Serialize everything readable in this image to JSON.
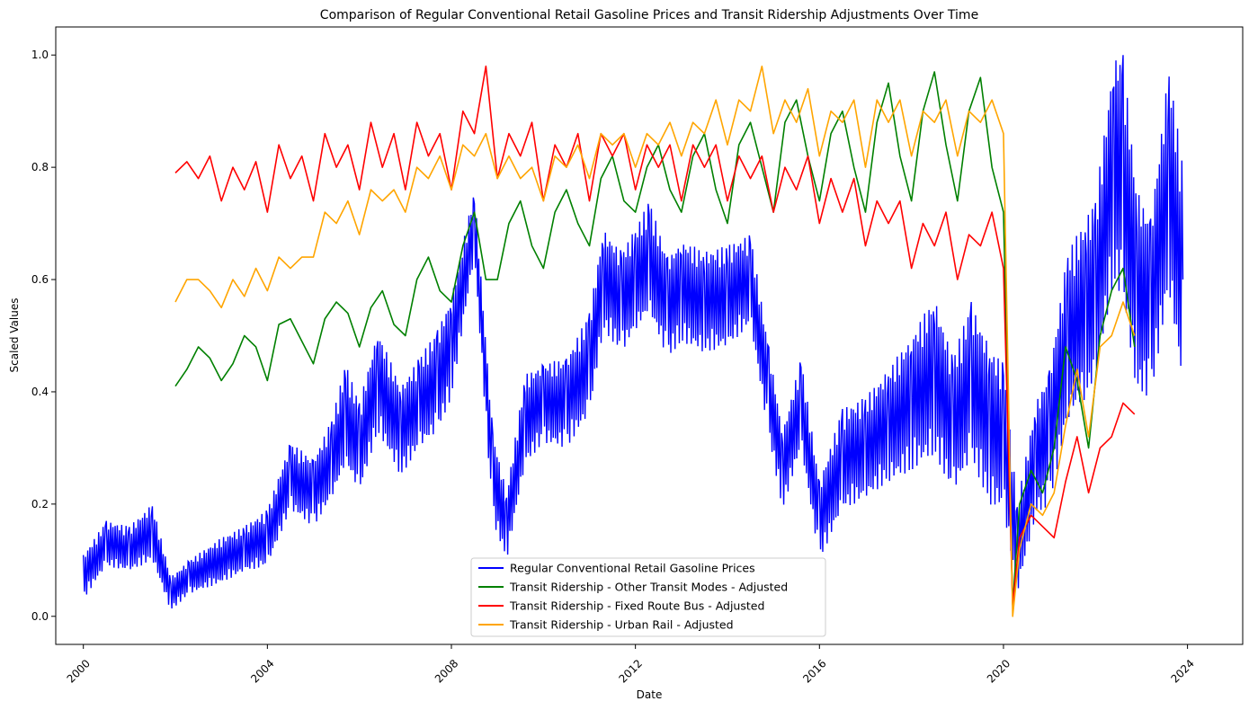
{
  "chart_data": {
    "type": "line",
    "title": "Comparison of Regular Conventional Retail Gasoline Prices and Transit Ridership Adjustments Over Time",
    "xlabel": "Date",
    "ylabel": "Scaled Values",
    "xlim": [
      1999.4,
      2025.2
    ],
    "ylim": [
      -0.05,
      1.05
    ],
    "x_ticks": [
      2000,
      2004,
      2008,
      2012,
      2016,
      2020,
      2024
    ],
    "x_tick_labels": [
      "2000",
      "2004",
      "2008",
      "2012",
      "2016",
      "2020",
      "2024"
    ],
    "y_ticks": [
      0.0,
      0.2,
      0.4,
      0.6,
      0.8,
      1.0
    ],
    "y_tick_labels": [
      "0.0",
      "0.2",
      "0.4",
      "0.6",
      "0.8",
      "1.0"
    ],
    "grid": false,
    "legend_position": "bottom-center",
    "series": [
      {
        "name": "Regular Conventional Retail Gasoline Prices",
        "color": "#0000ff",
        "band": true,
        "x": [
          2000.0,
          2000.5,
          2001.0,
          2001.5,
          2001.9,
          2002.3,
          2003.0,
          2003.5,
          2004.0,
          2004.5,
          2005.0,
          2005.4,
          2005.7,
          2006.0,
          2006.4,
          2006.9,
          2007.3,
          2007.7,
          2008.0,
          2008.5,
          2008.9,
          2009.2,
          2009.6,
          2010.0,
          2010.5,
          2011.0,
          2011.3,
          2011.7,
          2012.0,
          2012.3,
          2012.7,
          2013.0,
          2013.5,
          2014.0,
          2014.5,
          2014.9,
          2015.2,
          2015.6,
          2016.0,
          2016.5,
          2017.0,
          2017.5,
          2018.0,
          2018.5,
          2018.9,
          2019.3,
          2019.7,
          2020.0,
          2020.3,
          2020.7,
          2021.0,
          2021.4,
          2021.8,
          2022.0,
          2022.4,
          2022.6,
          2022.9,
          2023.2,
          2023.6,
          2023.9
        ],
        "values": [
          0.07,
          0.13,
          0.12,
          0.15,
          0.04,
          0.07,
          0.1,
          0.12,
          0.14,
          0.25,
          0.22,
          0.28,
          0.36,
          0.3,
          0.42,
          0.33,
          0.38,
          0.42,
          0.48,
          0.7,
          0.25,
          0.16,
          0.35,
          0.38,
          0.38,
          0.45,
          0.6,
          0.56,
          0.6,
          0.64,
          0.55,
          0.58,
          0.56,
          0.57,
          0.6,
          0.4,
          0.26,
          0.38,
          0.17,
          0.28,
          0.3,
          0.34,
          0.38,
          0.43,
          0.34,
          0.42,
          0.34,
          0.32,
          0.12,
          0.28,
          0.32,
          0.5,
          0.55,
          0.58,
          0.8,
          0.78,
          0.58,
          0.55,
          0.78,
          0.6
        ],
        "spread": [
          0.04,
          0.04,
          0.04,
          0.05,
          0.03,
          0.03,
          0.04,
          0.04,
          0.05,
          0.06,
          0.06,
          0.07,
          0.09,
          0.08,
          0.09,
          0.08,
          0.08,
          0.09,
          0.09,
          0.06,
          0.08,
          0.06,
          0.08,
          0.07,
          0.08,
          0.09,
          0.09,
          0.09,
          0.09,
          0.1,
          0.09,
          0.09,
          0.09,
          0.09,
          0.08,
          0.08,
          0.07,
          0.08,
          0.07,
          0.09,
          0.09,
          0.1,
          0.12,
          0.14,
          0.12,
          0.14,
          0.14,
          0.13,
          0.08,
          0.1,
          0.12,
          0.15,
          0.16,
          0.16,
          0.2,
          0.22,
          0.18,
          0.16,
          0.2,
          0.2
        ]
      },
      {
        "name": "Transit Ridership - Other Transit Modes - Adjusted",
        "color": "#008000",
        "x": [
          2002.0,
          2002.25,
          2002.5,
          2002.75,
          2003.0,
          2003.25,
          2003.5,
          2003.75,
          2004.0,
          2004.25,
          2004.5,
          2004.75,
          2005.0,
          2005.25,
          2005.5,
          2005.75,
          2006.0,
          2006.25,
          2006.5,
          2006.75,
          2007.0,
          2007.25,
          2007.5,
          2007.75,
          2008.0,
          2008.25,
          2008.5,
          2008.75,
          2009.0,
          2009.25,
          2009.5,
          2009.75,
          2010.0,
          2010.25,
          2010.5,
          2010.75,
          2011.0,
          2011.25,
          2011.5,
          2011.75,
          2012.0,
          2012.25,
          2012.5,
          2012.75,
          2013.0,
          2013.25,
          2013.5,
          2013.75,
          2014.0,
          2014.25,
          2014.5,
          2014.75,
          2015.0,
          2015.25,
          2015.5,
          2015.75,
          2016.0,
          2016.25,
          2016.5,
          2016.75,
          2017.0,
          2017.25,
          2017.5,
          2017.75,
          2018.0,
          2018.25,
          2018.5,
          2018.75,
          2019.0,
          2019.25,
          2019.5,
          2019.75,
          2020.0,
          2020.2,
          2020.35,
          2020.6,
          2020.85,
          2021.1,
          2021.35,
          2021.6,
          2021.85,
          2022.1,
          2022.35,
          2022.6,
          2022.85
        ],
        "values": [
          0.41,
          0.44,
          0.48,
          0.46,
          0.42,
          0.45,
          0.5,
          0.48,
          0.42,
          0.52,
          0.53,
          0.49,
          0.45,
          0.53,
          0.56,
          0.54,
          0.48,
          0.55,
          0.58,
          0.52,
          0.5,
          0.6,
          0.64,
          0.58,
          0.56,
          0.66,
          0.72,
          0.6,
          0.6,
          0.7,
          0.74,
          0.66,
          0.62,
          0.72,
          0.76,
          0.7,
          0.66,
          0.78,
          0.82,
          0.74,
          0.72,
          0.8,
          0.84,
          0.76,
          0.72,
          0.82,
          0.86,
          0.76,
          0.7,
          0.84,
          0.88,
          0.8,
          0.72,
          0.88,
          0.92,
          0.82,
          0.74,
          0.86,
          0.9,
          0.8,
          0.72,
          0.88,
          0.95,
          0.82,
          0.74,
          0.9,
          0.97,
          0.84,
          0.74,
          0.9,
          0.96,
          0.8,
          0.72,
          0.02,
          0.2,
          0.26,
          0.22,
          0.3,
          0.48,
          0.42,
          0.3,
          0.5,
          0.58,
          0.62,
          0.48
        ]
      },
      {
        "name": "Transit Ridership - Fixed Route Bus - Adjusted",
        "color": "#ff0000",
        "x": [
          2002.0,
          2002.25,
          2002.5,
          2002.75,
          2003.0,
          2003.25,
          2003.5,
          2003.75,
          2004.0,
          2004.25,
          2004.5,
          2004.75,
          2005.0,
          2005.25,
          2005.5,
          2005.75,
          2006.0,
          2006.25,
          2006.5,
          2006.75,
          2007.0,
          2007.25,
          2007.5,
          2007.75,
          2008.0,
          2008.25,
          2008.5,
          2008.75,
          2009.0,
          2009.25,
          2009.5,
          2009.75,
          2010.0,
          2010.25,
          2010.5,
          2010.75,
          2011.0,
          2011.25,
          2011.5,
          2011.75,
          2012.0,
          2012.25,
          2012.5,
          2012.75,
          2013.0,
          2013.25,
          2013.5,
          2013.75,
          2014.0,
          2014.25,
          2014.5,
          2014.75,
          2015.0,
          2015.25,
          2015.5,
          2015.75,
          2016.0,
          2016.25,
          2016.5,
          2016.75,
          2017.0,
          2017.25,
          2017.5,
          2017.75,
          2018.0,
          2018.25,
          2018.5,
          2018.75,
          2019.0,
          2019.25,
          2019.5,
          2019.75,
          2020.0,
          2020.2,
          2020.35,
          2020.6,
          2020.85,
          2021.1,
          2021.35,
          2021.6,
          2021.85,
          2022.1,
          2022.35,
          2022.6,
          2022.85
        ],
        "values": [
          0.79,
          0.81,
          0.78,
          0.82,
          0.74,
          0.8,
          0.76,
          0.81,
          0.72,
          0.84,
          0.78,
          0.82,
          0.74,
          0.86,
          0.8,
          0.84,
          0.76,
          0.88,
          0.8,
          0.86,
          0.76,
          0.88,
          0.82,
          0.86,
          0.76,
          0.9,
          0.86,
          0.98,
          0.78,
          0.86,
          0.82,
          0.88,
          0.74,
          0.84,
          0.8,
          0.86,
          0.74,
          0.86,
          0.82,
          0.86,
          0.76,
          0.84,
          0.8,
          0.84,
          0.74,
          0.84,
          0.8,
          0.84,
          0.74,
          0.82,
          0.78,
          0.82,
          0.72,
          0.8,
          0.76,
          0.82,
          0.7,
          0.78,
          0.72,
          0.78,
          0.66,
          0.74,
          0.7,
          0.74,
          0.62,
          0.7,
          0.66,
          0.72,
          0.6,
          0.68,
          0.66,
          0.72,
          0.62,
          0.02,
          0.14,
          0.18,
          0.16,
          0.14,
          0.24,
          0.32,
          0.22,
          0.3,
          0.32,
          0.38,
          0.36
        ]
      },
      {
        "name": "Transit Ridership - Urban Rail - Adjusted",
        "color": "#ffa500",
        "x": [
          2002.0,
          2002.25,
          2002.5,
          2002.75,
          2003.0,
          2003.25,
          2003.5,
          2003.75,
          2004.0,
          2004.25,
          2004.5,
          2004.75,
          2005.0,
          2005.25,
          2005.5,
          2005.75,
          2006.0,
          2006.25,
          2006.5,
          2006.75,
          2007.0,
          2007.25,
          2007.5,
          2007.75,
          2008.0,
          2008.25,
          2008.5,
          2008.75,
          2009.0,
          2009.25,
          2009.5,
          2009.75,
          2010.0,
          2010.25,
          2010.5,
          2010.75,
          2011.0,
          2011.25,
          2011.5,
          2011.75,
          2012.0,
          2012.25,
          2012.5,
          2012.75,
          2013.0,
          2013.25,
          2013.5,
          2013.75,
          2014.0,
          2014.25,
          2014.5,
          2014.75,
          2015.0,
          2015.25,
          2015.5,
          2015.75,
          2016.0,
          2016.25,
          2016.5,
          2016.75,
          2017.0,
          2017.25,
          2017.5,
          2017.75,
          2018.0,
          2018.25,
          2018.5,
          2018.75,
          2019.0,
          2019.25,
          2019.5,
          2019.75,
          2020.0,
          2020.2,
          2020.35,
          2020.6,
          2020.85,
          2021.1,
          2021.35,
          2021.6,
          2021.85,
          2022.1,
          2022.35,
          2022.6,
          2022.85
        ],
        "values": [
          0.56,
          0.6,
          0.6,
          0.58,
          0.55,
          0.6,
          0.57,
          0.62,
          0.58,
          0.64,
          0.62,
          0.64,
          0.64,
          0.72,
          0.7,
          0.74,
          0.68,
          0.76,
          0.74,
          0.76,
          0.72,
          0.8,
          0.78,
          0.82,
          0.76,
          0.84,
          0.82,
          0.86,
          0.78,
          0.82,
          0.78,
          0.8,
          0.74,
          0.82,
          0.8,
          0.84,
          0.78,
          0.86,
          0.84,
          0.86,
          0.8,
          0.86,
          0.84,
          0.88,
          0.82,
          0.88,
          0.86,
          0.92,
          0.84,
          0.92,
          0.9,
          0.98,
          0.86,
          0.92,
          0.88,
          0.94,
          0.82,
          0.9,
          0.88,
          0.92,
          0.8,
          0.92,
          0.88,
          0.92,
          0.82,
          0.9,
          0.88,
          0.92,
          0.82,
          0.9,
          0.88,
          0.92,
          0.86,
          0.0,
          0.12,
          0.2,
          0.18,
          0.22,
          0.34,
          0.44,
          0.32,
          0.48,
          0.5,
          0.56,
          0.5
        ]
      }
    ]
  }
}
